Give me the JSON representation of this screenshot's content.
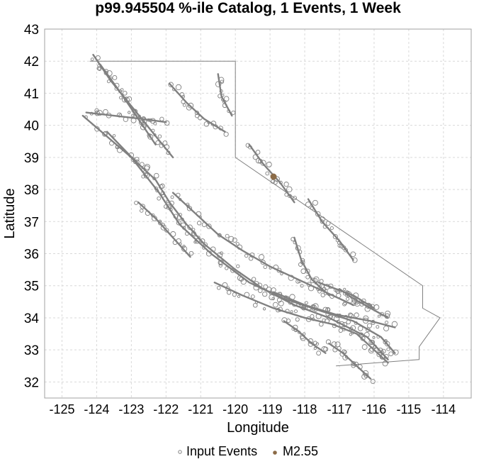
{
  "chart_data": {
    "type": "scatter",
    "title": "p99.945504 %-ile Catalog, 1 Events, 1 Week",
    "xlabel": "Longitude",
    "ylabel": "Latitude",
    "xlim": [
      -125.5,
      -113.2
    ],
    "ylim": [
      31.5,
      43
    ],
    "x_ticks": [
      -125,
      -124,
      -123,
      -122,
      -121,
      -120,
      -119,
      -118,
      -117,
      -116,
      -115,
      -114
    ],
    "y_ticks": [
      32,
      33,
      34,
      35,
      36,
      37,
      38,
      39,
      40,
      41,
      42,
      43
    ],
    "grid": true,
    "legend_position": "bottom",
    "colors": {
      "input_events": "#808080",
      "event": "#8b6b47",
      "state_border": "#808080",
      "grid": "#d9d9d9",
      "frame": "#a0a0a0"
    },
    "legend": [
      {
        "label": "Input Events",
        "marker": "hollow-circle"
      },
      {
        "label": "M2.55",
        "marker": "filled-circle"
      }
    ],
    "state_border": [
      [
        -124.2,
        42.0
      ],
      [
        -120.0,
        42.0
      ],
      [
        -120.0,
        39.0
      ],
      [
        -114.6,
        35.0
      ],
      [
        -114.6,
        34.3
      ],
      [
        -114.1,
        34.0
      ],
      [
        -114.7,
        33.1
      ],
      [
        -114.7,
        32.7
      ],
      [
        -117.1,
        32.5
      ]
    ],
    "fault_traces": [
      [
        [
          -124.4,
          40.3
        ],
        [
          -123.0,
          39.0
        ],
        [
          -122.2,
          37.9
        ],
        [
          -121.6,
          36.9
        ],
        [
          -120.7,
          36.0
        ],
        [
          -119.6,
          35.1
        ],
        [
          -118.6,
          34.6
        ],
        [
          -117.5,
          34.2
        ],
        [
          -116.6,
          33.9
        ],
        [
          -115.8,
          33.4
        ],
        [
          -115.4,
          32.9
        ]
      ],
      [
        [
          -123.7,
          39.8
        ],
        [
          -122.9,
          38.9
        ],
        [
          -122.3,
          38.3
        ],
        [
          -121.9,
          37.6
        ],
        [
          -121.4,
          36.9
        ],
        [
          -120.9,
          36.3
        ],
        [
          -120.0,
          35.5
        ],
        [
          -119.2,
          34.9
        ],
        [
          -118.3,
          34.4
        ],
        [
          -117.3,
          34.0
        ],
        [
          -116.2,
          33.4
        ],
        [
          -115.6,
          32.7
        ]
      ],
      [
        [
          -124.1,
          42.2
        ],
        [
          -123.6,
          41.4
        ],
        [
          -123.0,
          40.6
        ],
        [
          -122.4,
          39.8
        ],
        [
          -121.8,
          39.0
        ]
      ],
      [
        [
          -123.9,
          41.9
        ],
        [
          -123.3,
          41.0
        ],
        [
          -122.8,
          40.2
        ],
        [
          -122.3,
          39.4
        ]
      ],
      [
        [
          -121.8,
          37.9
        ],
        [
          -121.2,
          37.3
        ],
        [
          -120.5,
          36.6
        ],
        [
          -119.8,
          36.1
        ],
        [
          -119.0,
          35.6
        ],
        [
          -118.2,
          35.2
        ],
        [
          -117.4,
          34.8
        ],
        [
          -116.6,
          34.4
        ]
      ],
      [
        [
          -120.6,
          35.1
        ],
        [
          -119.8,
          34.7
        ],
        [
          -118.9,
          34.3
        ],
        [
          -118.0,
          34.0
        ],
        [
          -117.2,
          33.8
        ],
        [
          -116.5,
          33.5
        ],
        [
          -116.0,
          33.0
        ],
        [
          -115.6,
          32.6
        ]
      ],
      [
        [
          -118.9,
          34.8
        ],
        [
          -118.0,
          34.4
        ],
        [
          -117.1,
          34.1
        ],
        [
          -116.1,
          33.9
        ],
        [
          -115.4,
          33.7
        ]
      ],
      [
        [
          -118.3,
          36.5
        ],
        [
          -118.1,
          35.8
        ],
        [
          -117.8,
          35.2
        ],
        [
          -117.3,
          34.7
        ]
      ],
      [
        [
          -117.9,
          37.7
        ],
        [
          -117.5,
          37.0
        ],
        [
          -117.0,
          36.4
        ],
        [
          -116.6,
          35.8
        ]
      ],
      [
        [
          -119.6,
          39.4
        ],
        [
          -119.2,
          38.8
        ],
        [
          -118.7,
          38.2
        ],
        [
          -118.3,
          37.6
        ]
      ],
      [
        [
          -117.0,
          34.9
        ],
        [
          -116.6,
          34.6
        ],
        [
          -116.1,
          34.3
        ],
        [
          -115.6,
          34.0
        ]
      ],
      [
        [
          -117.6,
          35.1
        ],
        [
          -117.1,
          34.9
        ],
        [
          -116.6,
          34.7
        ],
        [
          -116.0,
          34.3
        ]
      ],
      [
        [
          -121.9,
          41.3
        ],
        [
          -121.4,
          40.7
        ],
        [
          -120.9,
          40.2
        ],
        [
          -120.3,
          39.8
        ]
      ],
      [
        [
          -120.5,
          41.6
        ],
        [
          -120.4,
          40.9
        ],
        [
          -120.1,
          40.3
        ]
      ],
      [
        [
          -124.3,
          40.4
        ],
        [
          -123.5,
          40.3
        ],
        [
          -122.7,
          40.2
        ],
        [
          -122.0,
          40.1
        ]
      ],
      [
        [
          -117.3,
          33.2
        ],
        [
          -116.9,
          32.9
        ],
        [
          -116.5,
          32.5
        ],
        [
          -116.1,
          32.1
        ]
      ],
      [
        [
          -118.6,
          33.9
        ],
        [
          -118.2,
          33.6
        ],
        [
          -117.8,
          33.2
        ],
        [
          -117.4,
          32.9
        ]
      ],
      [
        [
          -122.8,
          37.6
        ],
        [
          -122.3,
          37.1
        ],
        [
          -121.8,
          36.5
        ],
        [
          -121.3,
          35.9
        ]
      ]
    ],
    "m255_event": {
      "lon": -118.9,
      "lat": 38.4,
      "label": "M2.55"
    }
  }
}
